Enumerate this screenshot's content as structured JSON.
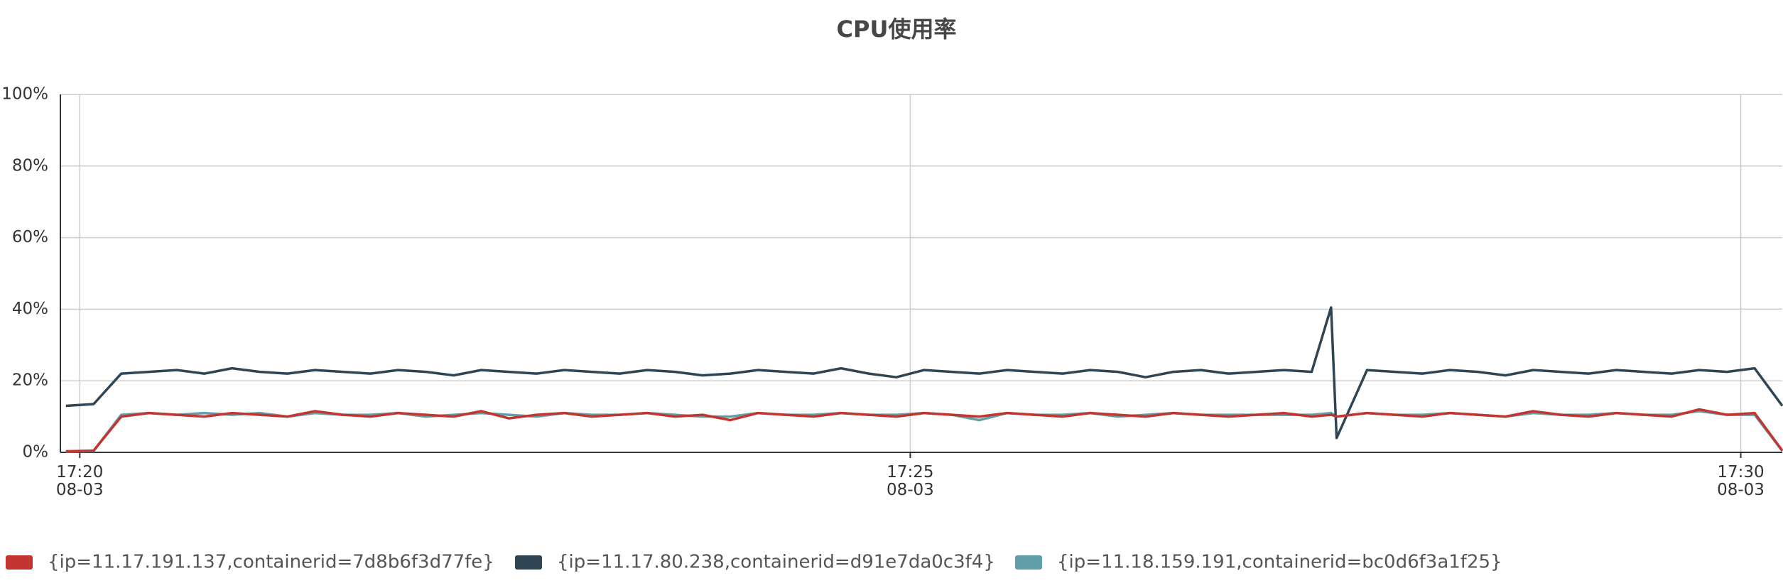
{
  "chart_data": {
    "type": "line",
    "title": "CPU使用率",
    "x": [
      "17:19:55",
      "17:20:05",
      "17:20:15",
      "17:20:25",
      "17:20:35",
      "17:20:45",
      "17:20:55",
      "17:21:05",
      "17:21:15",
      "17:21:25",
      "17:21:35",
      "17:21:45",
      "17:21:55",
      "17:22:05",
      "17:22:15",
      "17:22:25",
      "17:22:35",
      "17:22:45",
      "17:22:55",
      "17:23:05",
      "17:23:15",
      "17:23:25",
      "17:23:35",
      "17:23:45",
      "17:23:55",
      "17:24:05",
      "17:24:15",
      "17:24:25",
      "17:24:35",
      "17:24:45",
      "17:24:55",
      "17:25:05",
      "17:25:15",
      "17:25:25",
      "17:25:35",
      "17:25:45",
      "17:25:55",
      "17:26:05",
      "17:26:15",
      "17:26:25",
      "17:26:35",
      "17:26:45",
      "17:26:55",
      "17:27:05",
      "17:27:15",
      "17:27:25",
      "17:27:32",
      "17:27:34",
      "17:27:45",
      "17:27:55",
      "17:28:05",
      "17:28:15",
      "17:28:25",
      "17:28:35",
      "17:28:45",
      "17:28:55",
      "17:29:05",
      "17:29:15",
      "17:29:25",
      "17:29:35",
      "17:29:45",
      "17:29:55",
      "17:30:05",
      "17:30:15"
    ],
    "series": [
      {
        "name": "{ip=11.17.191.137,containerid=7d8b6f3d77fe}",
        "color": "#c23531",
        "values": [
          0.3,
          0.5,
          10,
          11,
          10.5,
          10,
          11,
          10.5,
          10,
          11.5,
          10.5,
          10,
          11,
          10.5,
          10,
          11.5,
          9.5,
          10.5,
          11,
          10,
          10.5,
          11,
          10,
          10.5,
          9,
          11,
          10.5,
          10,
          11,
          10.5,
          10,
          11,
          10.5,
          10,
          11,
          10.5,
          10,
          11,
          10.5,
          10,
          11,
          10.5,
          10,
          10.5,
          11,
          10,
          10.5,
          10,
          11,
          10.5,
          10,
          11,
          10.5,
          10,
          11.5,
          10.5,
          10,
          11,
          10.5,
          10,
          12,
          10.5,
          11,
          0.5
        ]
      },
      {
        "name": "{ip=11.17.80.238,containerid=d91e7da0c3f4}",
        "color": "#2f4554",
        "values": [
          13,
          13.5,
          22,
          22.5,
          23,
          22,
          23.5,
          22.5,
          22,
          23,
          22.5,
          22,
          23,
          22.5,
          21.5,
          23,
          22.5,
          22,
          23,
          22.5,
          22,
          23,
          22.5,
          21.5,
          22,
          23,
          22.5,
          22,
          23.5,
          22,
          21,
          23,
          22.5,
          22,
          23,
          22.5,
          22,
          23,
          22.5,
          21,
          22.5,
          23,
          22,
          22.5,
          23,
          22.5,
          40.5,
          4,
          23,
          22.5,
          22,
          23,
          22.5,
          21.5,
          23,
          22.5,
          22,
          23,
          22.5,
          22,
          23,
          22.5,
          23.5,
          13
        ]
      },
      {
        "name": "{ip=11.18.159.191,containerid=bc0d6f3a1f25}",
        "color": "#61a0a8",
        "values": [
          0.2,
          0.4,
          10.5,
          11,
          10.5,
          11,
          10.5,
          11,
          10,
          11,
          10.5,
          10.5,
          11,
          10,
          10.5,
          11,
          10.5,
          10,
          11,
          10.5,
          10.5,
          11,
          10.5,
          10,
          10,
          11,
          10.5,
          10.5,
          11,
          10.5,
          10.5,
          11,
          10.5,
          9,
          11,
          10.5,
          10.5,
          11,
          10,
          10.5,
          11,
          10.5,
          10.5,
          10.5,
          10.5,
          10.5,
          11,
          10,
          11,
          10.5,
          10.5,
          11,
          10.5,
          10,
          11,
          10.5,
          10.5,
          11,
          10.5,
          10.5,
          11.5,
          10.5,
          10.5,
          0.4
        ]
      }
    ],
    "xlim": [
      "17:19:53",
      "17:30:15"
    ],
    "xticks": [
      {
        "value": "17:20:00",
        "label": "17:20\n08-03"
      },
      {
        "value": "17:25:00",
        "label": "17:25\n08-03"
      },
      {
        "value": "17:30:00",
        "label": "17:30\n08-03"
      }
    ],
    "ylim": [
      0,
      100
    ],
    "yticks": [
      {
        "value": 0,
        "label": "0%"
      },
      {
        "value": 20,
        "label": "20%"
      },
      {
        "value": 40,
        "label": "40%"
      },
      {
        "value": 60,
        "label": "60%"
      },
      {
        "value": 80,
        "label": "80%"
      },
      {
        "value": 100,
        "label": "100%"
      }
    ],
    "grid": true,
    "legend": "bottom"
  }
}
